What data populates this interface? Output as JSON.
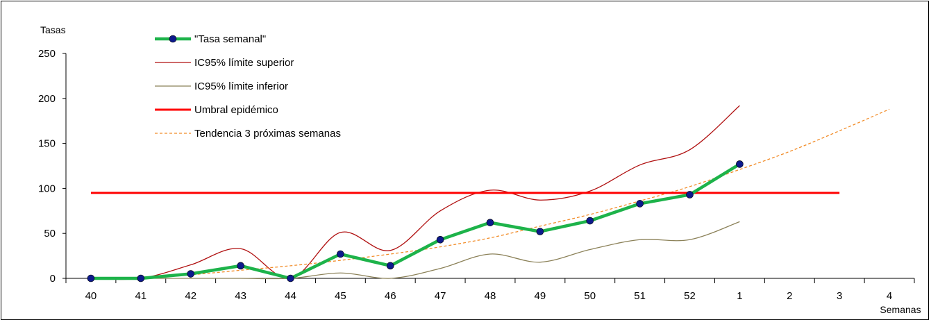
{
  "chart_data": {
    "type": "line",
    "xlabel": "Semanas",
    "ylabel": "Tasas",
    "ylim": [
      0,
      250
    ],
    "yticks": [
      0,
      50,
      100,
      150,
      200,
      250
    ],
    "categories": [
      "40",
      "41",
      "42",
      "43",
      "44",
      "45",
      "46",
      "47",
      "48",
      "49",
      "50",
      "51",
      "52",
      "1",
      "2",
      "3",
      "4"
    ],
    "grid": false,
    "legend_position": "top-left",
    "series": [
      {
        "name": "\"Tasa semanal\"",
        "color": "#1db34a",
        "marker_color": "#0d1a8c",
        "style": "thick-with-markers",
        "values": [
          0,
          0,
          5,
          14,
          0,
          27,
          14,
          43,
          62,
          52,
          64,
          83,
          93,
          127,
          null,
          null,
          null
        ]
      },
      {
        "name": "IC95% límite superior",
        "color": "#b01010",
        "style": "thin-smooth",
        "values": [
          0,
          0,
          15,
          33,
          0,
          51,
          31,
          75,
          98,
          87,
          97,
          126,
          143,
          192,
          null,
          null,
          null
        ]
      },
      {
        "name": "IC95% límite inferior",
        "color": "#8b8158",
        "style": "thin-smooth",
        "values": [
          0,
          0,
          0,
          0,
          0,
          6,
          0,
          11,
          27,
          18,
          32,
          43,
          43,
          63,
          null,
          null,
          null
        ]
      },
      {
        "name": "Umbral epidémico",
        "color": "#ff0000",
        "style": "thick-flat",
        "values": [
          95,
          95,
          95,
          95,
          95,
          95,
          95,
          95,
          95,
          95,
          95,
          95,
          95,
          95,
          95,
          95,
          null
        ]
      },
      {
        "name": "Tendencia 3 próximas semanas",
        "color": "#f28c28",
        "style": "dashed",
        "values": [
          0,
          1,
          4,
          9,
          14,
          20,
          27,
          35,
          45,
          58,
          71,
          86,
          102,
          121,
          141,
          164,
          188
        ]
      }
    ]
  }
}
